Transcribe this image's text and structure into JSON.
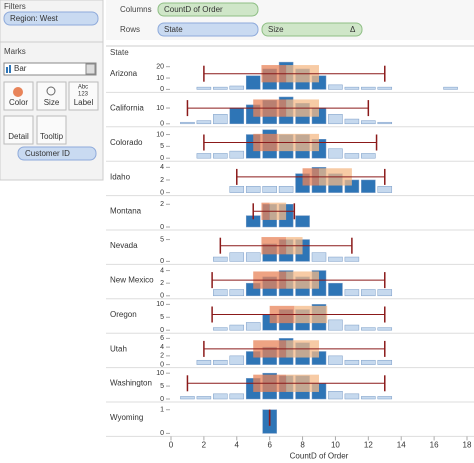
{
  "ui": {
    "filters_title": "Filters",
    "filter_pill": "Region: West",
    "marks_title": "Marks",
    "mark_type": "Bar",
    "buttons": [
      "Color",
      "Size",
      "Label",
      "Detail",
      "Tooltip"
    ],
    "label_icon": [
      "Abc",
      "123"
    ],
    "detail_pill": "Customer ID",
    "columns_label": "Columns",
    "columns_pill": "CountD of Order",
    "rows_label": "Rows",
    "rows_pills": [
      "State",
      "Size"
    ],
    "size_icon": "Δ",
    "row_header": "State"
  },
  "chart_data": {
    "type": "box-histogram",
    "x_label": "CountD of Order",
    "xlim": [
      0,
      18
    ],
    "xticks": [
      0,
      2,
      4,
      6,
      8,
      10,
      12,
      14,
      16,
      18
    ],
    "x": [
      1,
      2,
      3,
      4,
      5,
      6,
      7,
      8,
      9,
      10,
      11,
      12,
      13,
      14,
      15,
      16,
      17
    ],
    "bar_colors": [
      "#c6d9ee",
      "#2e75b6"
    ],
    "box_colors": [
      "#e8845a",
      "#f4b987"
    ],
    "whisker_color": "#8b1a1a",
    "panels": [
      {
        "state": "Arizona",
        "ylim": [
          0,
          25
        ],
        "yticks": [
          0,
          10,
          20
        ],
        "values": [
          0,
          2,
          2,
          3,
          12,
          18,
          24,
          18,
          12,
          4,
          2,
          2,
          2,
          0,
          0,
          0,
          2
        ],
        "whisker": [
          2,
          13
        ],
        "box": [
          5.5,
          7,
          9
        ]
      },
      {
        "state": "California",
        "ylim": [
          0,
          18
        ],
        "yticks": [
          0,
          10
        ],
        "values": [
          1,
          2,
          6,
          10,
          12,
          15,
          17,
          13,
          10,
          6,
          3,
          2,
          1,
          0,
          0,
          0,
          0
        ],
        "whisker": [
          1,
          12
        ],
        "box": [
          5,
          7,
          9
        ]
      },
      {
        "state": "Colorado",
        "ylim": [
          0,
          12
        ],
        "yticks": [
          0,
          5,
          10
        ],
        "values": [
          0,
          2,
          2,
          3,
          10,
          12,
          10,
          10,
          8,
          4,
          2,
          2,
          0,
          0,
          0,
          0,
          0
        ],
        "whisker": [
          2,
          12.5
        ],
        "box": [
          5,
          6.5,
          9
        ]
      },
      {
        "state": "Idaho",
        "ylim": [
          0,
          4.5
        ],
        "yticks": [
          0,
          2,
          4
        ],
        "values": [
          0,
          0,
          0,
          1,
          1,
          1,
          1,
          3,
          4,
          3,
          2,
          2,
          1,
          0,
          0,
          0,
          0
        ],
        "whisker": [
          4,
          13
        ],
        "box": [
          8,
          9,
          11
        ]
      },
      {
        "state": "Montana",
        "ylim": [
          0,
          2.5
        ],
        "yticks": [
          0,
          2
        ],
        "values": [
          0,
          0,
          0,
          0,
          1,
          2,
          2,
          1,
          0,
          0,
          0,
          0,
          0,
          0,
          0,
          0,
          0
        ],
        "whisker": [
          5,
          7.5
        ],
        "box": [
          5.5,
          6,
          7
        ]
      },
      {
        "state": "Nevada",
        "ylim": [
          0,
          6.5
        ],
        "yticks": [
          0,
          5
        ],
        "values": [
          0,
          0,
          1,
          2,
          2,
          4,
          5,
          5,
          2,
          1,
          1,
          0,
          0,
          0,
          0,
          0,
          0
        ],
        "whisker": [
          3,
          11
        ],
        "box": [
          5.5,
          7,
          8
        ]
      },
      {
        "state": "New Mexico",
        "ylim": [
          0,
          4.5
        ],
        "yticks": [
          0,
          2,
          4
        ],
        "values": [
          0,
          0,
          1,
          1,
          2,
          3,
          4,
          3,
          4,
          2,
          1,
          1,
          1,
          0,
          0,
          0,
          0
        ],
        "whisker": [
          2.5,
          13
        ],
        "box": [
          5,
          7,
          9
        ]
      },
      {
        "state": "Oregon",
        "ylim": [
          0,
          11
        ],
        "yticks": [
          0,
          5,
          10
        ],
        "values": [
          0,
          0,
          1,
          2,
          3,
          6,
          8,
          8,
          10,
          4,
          2,
          1,
          1,
          0,
          0,
          0,
          0
        ],
        "whisker": [
          2.5,
          13
        ],
        "box": [
          6,
          7.5,
          9.5
        ]
      },
      {
        "state": "Utah",
        "ylim": [
          0,
          6.5
        ],
        "yticks": [
          0,
          2,
          4,
          6
        ],
        "values": [
          0,
          1,
          1,
          2,
          3,
          4,
          6,
          5,
          3,
          2,
          1,
          1,
          1,
          0,
          0,
          0,
          0
        ],
        "whisker": [
          2,
          13
        ],
        "box": [
          5,
          7,
          9
        ]
      },
      {
        "state": "Washington",
        "ylim": [
          0,
          11
        ],
        "yticks": [
          0,
          5,
          10
        ],
        "values": [
          1,
          1,
          2,
          2,
          8,
          10,
          9,
          9,
          6,
          3,
          2,
          1,
          1,
          0,
          0,
          0,
          0
        ],
        "whisker": [
          1,
          13
        ],
        "box": [
          5,
          7,
          9
        ]
      },
      {
        "state": "Wyoming",
        "ylim": [
          0,
          1.2
        ],
        "yticks": [
          0,
          1
        ],
        "values": [
          0,
          0,
          0,
          0,
          0,
          1,
          0,
          0,
          0,
          0,
          0,
          0,
          0,
          0,
          0,
          0,
          0
        ],
        "whisker": [
          6,
          6
        ],
        "box": [
          6,
          6,
          6
        ]
      }
    ]
  }
}
